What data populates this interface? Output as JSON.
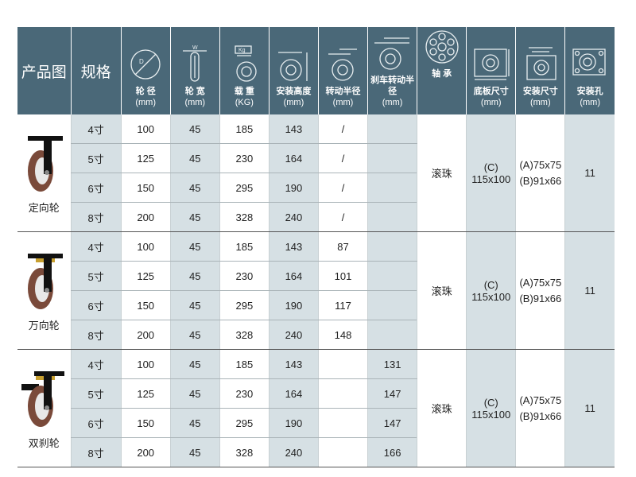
{
  "header": {
    "product_image": "产品图",
    "spec": "规格",
    "columns": [
      {
        "label": "轮 径",
        "unit": "(mm)",
        "icon": "wheel-diameter-icon"
      },
      {
        "label": "轮 宽",
        "unit": "(mm)",
        "icon": "wheel-width-icon"
      },
      {
        "label": "载 重",
        "unit": "(KG)",
        "icon": "load-icon"
      },
      {
        "label": "安装高度",
        "unit": "(mm)",
        "icon": "mounting-height-icon"
      },
      {
        "label": "转动半径",
        "unit": "(mm)",
        "icon": "swivel-radius-icon"
      },
      {
        "label": "刹车转动半径",
        "unit": "(mm)",
        "icon": "brake-swivel-radius-icon"
      },
      {
        "label": "轴 承",
        "unit": "",
        "icon": "bearing-icon"
      },
      {
        "label": "底板尺寸",
        "unit": "(mm)",
        "icon": "plate-size-icon"
      },
      {
        "label": "安装尺寸",
        "unit": "(mm)",
        "icon": "mounting-size-icon"
      },
      {
        "label": "安装孔",
        "unit": "(mm)",
        "icon": "mounting-hole-icon"
      }
    ]
  },
  "groups": [
    {
      "name": "定向轮",
      "bearing": "滚珠",
      "plate": [
        "(C)",
        "115x100"
      ],
      "mount": [
        "(A)75x75",
        "(B)91x66"
      ],
      "hole": "11",
      "rows": [
        [
          "4寸",
          "100",
          "45",
          "185",
          "143",
          "/",
          ""
        ],
        [
          "5寸",
          "125",
          "45",
          "230",
          "164",
          "/",
          ""
        ],
        [
          "6寸",
          "150",
          "45",
          "295",
          "190",
          "/",
          ""
        ],
        [
          "8寸",
          "200",
          "45",
          "328",
          "240",
          "/",
          ""
        ]
      ]
    },
    {
      "name": "万向轮",
      "bearing": "滚珠",
      "plate": [
        "(C)",
        "115x100"
      ],
      "mount": [
        "(A)75x75",
        "(B)91x66"
      ],
      "hole": "11",
      "rows": [
        [
          "4寸",
          "100",
          "45",
          "185",
          "143",
          "87",
          ""
        ],
        [
          "5寸",
          "125",
          "45",
          "230",
          "164",
          "101",
          ""
        ],
        [
          "6寸",
          "150",
          "45",
          "295",
          "190",
          "117",
          ""
        ],
        [
          "8寸",
          "200",
          "45",
          "328",
          "240",
          "148",
          ""
        ]
      ]
    },
    {
      "name": "双刹轮",
      "bearing": "滚珠",
      "plate": [
        "(C)",
        "115x100"
      ],
      "mount": [
        "(A)75x75",
        "(B)91x66"
      ],
      "hole": "11",
      "rows": [
        [
          "4寸",
          "100",
          "45",
          "185",
          "143",
          "",
          "131"
        ],
        [
          "5寸",
          "125",
          "45",
          "230",
          "164",
          "",
          "147"
        ],
        [
          "6寸",
          "150",
          "45",
          "295",
          "190",
          "",
          "147"
        ],
        [
          "8寸",
          "200",
          "45",
          "328",
          "240",
          "",
          "166"
        ]
      ]
    }
  ],
  "colors": {
    "header": "#4a6878",
    "shade": "#d6e0e4",
    "wheel": "#7a4a3a"
  }
}
